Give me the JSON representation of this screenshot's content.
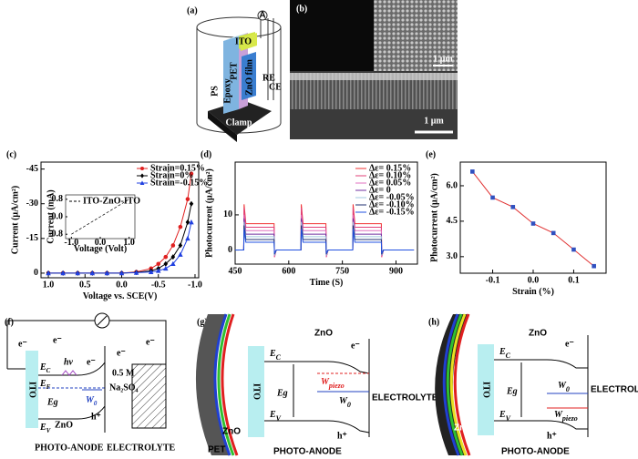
{
  "panel_a": {
    "label": "(a)",
    "ammeter": "A",
    "ito": "ITO",
    "pet": "PET",
    "zno_film": "ZnO film",
    "epoxy": "Epoxy",
    "ps": "PS",
    "re": "RE",
    "ce": "CE",
    "clamp": "Clamp"
  },
  "panel_b": {
    "label": "(b)",
    "scale_top": "1 μm",
    "scale_bottom": "1 μm"
  },
  "chart_data": [
    {
      "panel": "(c)",
      "type": "line",
      "x_label": "Voltage vs. SCE(V)",
      "y_label": "Current (μA/cm²)",
      "xlim": [
        1.1,
        -1.05
      ],
      "ylim": [
        2,
        -48
      ],
      "xticks": [
        {
          "value": 1,
          "label": "1.0"
        },
        0.5,
        {
          "value": 0,
          "label": "0.0"
        },
        -0.5,
        {
          "value": -1,
          "label": "-1.0"
        }
      ],
      "yticks": [
        0,
        -15,
        -30,
        -45
      ],
      "legend": "upper right",
      "x": [
        1.0,
        0.8,
        0.6,
        0.4,
        0.2,
        0.0,
        -0.2,
        -0.4,
        -0.5,
        -0.6,
        -0.7,
        -0.8,
        -0.9,
        -0.95
      ],
      "series": [
        {
          "name": "Strain=0.15%",
          "color": "#e02020",
          "marker": "circle",
          "values": [
            0,
            0,
            0,
            0,
            0,
            0,
            -0.5,
            -2,
            -4,
            -7,
            -12,
            -20,
            -32,
            -43
          ]
        },
        {
          "name": "Strain=0%",
          "color": "#000000",
          "marker": "diamond",
          "values": [
            0,
            0,
            0,
            0,
            0,
            0,
            -0.3,
            -1,
            -2,
            -4,
            -7,
            -12,
            -22,
            -30
          ]
        },
        {
          "name": "Strain=-0.15%",
          "color": "#2040e0",
          "marker": "triangle",
          "values": [
            0,
            0,
            0,
            0,
            0,
            0,
            -0.2,
            -0.5,
            -1,
            -2,
            -4,
            -8,
            -15,
            -22
          ]
        }
      ]
    },
    {
      "type": "line",
      "x_label": "Voltage (Volt)",
      "y_label": "Current (mA)",
      "xlim": [
        -1.2,
        1.2
      ],
      "ylim": [
        -1,
        1
      ],
      "xticks": [
        {
          "value": -1,
          "label": "-1.0"
        },
        {
          "value": 0,
          "label": "0.0"
        },
        {
          "value": 1,
          "label": "1.0"
        }
      ],
      "yticks": [
        -0.8,
        {
          "value": 0,
          "label": "0.0"
        },
        0.8
      ],
      "legend": "upper left",
      "x": [
        -1,
        1
      ],
      "series": [
        {
          "name": "ITO-ZnO-ITO",
          "color": "#000000",
          "dash": true,
          "values": [
            -0.8,
            0.8
          ]
        }
      ]
    },
    {
      "panel": "(d)",
      "type": "line",
      "x_label": "Time (S)",
      "y_label": "Photocurrent (μA/cm²)",
      "xlim": [
        450,
        960
      ],
      "ylim": [
        -4,
        25
      ],
      "xticks": [
        450,
        600,
        750,
        900
      ],
      "yticks": [
        0,
        10
      ],
      "legend": "upper right",
      "x": [
        450,
        474,
        475,
        480,
        559,
        560,
        565,
        634,
        635,
        640,
        704,
        705,
        710,
        779,
        780,
        785,
        859,
        860,
        865,
        950
      ],
      "series": [
        {
          "name": "Δε= 0.15%",
          "color": "#f03030",
          "values": [
            0,
            0,
            13,
            7.5,
            7.5,
            -2,
            0,
            0,
            13,
            7.5,
            7.5,
            -2,
            0,
            0,
            13,
            7.5,
            7.5,
            -2,
            0,
            0
          ]
        },
        {
          "name": "Δε= 0.10%",
          "color": "#e0407a",
          "values": [
            0,
            0,
            12,
            6.5,
            6.5,
            -2,
            0,
            0,
            12,
            6.5,
            6.5,
            -2,
            0,
            0,
            12,
            6.5,
            6.5,
            -2,
            0,
            0
          ]
        },
        {
          "name": "Δε= 0.05%",
          "color": "#e070c0",
          "values": [
            0,
            0,
            10,
            5.5,
            5.5,
            -1.8,
            0,
            0,
            10,
            5.5,
            5.5,
            -1.8,
            0,
            0,
            10,
            5.5,
            5.5,
            -1.8,
            0,
            0
          ]
        },
        {
          "name": "Δε= 0",
          "color": "#7030a0",
          "values": [
            0,
            0,
            9,
            4.5,
            4.5,
            -1.5,
            0,
            0,
            9,
            4.5,
            4.5,
            -1.5,
            0,
            0,
            9,
            4.5,
            4.5,
            -1.5,
            0,
            0
          ]
        },
        {
          "name": "Δε= -0.05%",
          "color": "#a0c8e0",
          "values": [
            0,
            0,
            8,
            3.8,
            3.8,
            -1.5,
            0,
            0,
            8,
            3.8,
            3.8,
            -1.5,
            0,
            0,
            8,
            3.8,
            3.8,
            -1.5,
            0,
            0
          ]
        },
        {
          "name": "Δε= -0.10%",
          "color": "#203070",
          "values": [
            0,
            0,
            7,
            3.0,
            3.0,
            -1.2,
            0,
            0,
            7,
            3.0,
            3.0,
            -1.2,
            0,
            0,
            7,
            3.0,
            3.0,
            -1.2,
            0,
            0
          ]
        },
        {
          "name": "Δε= -0.15%",
          "color": "#2050e0",
          "values": [
            0,
            0,
            6,
            2.2,
            2.2,
            -1,
            0,
            0,
            6,
            2.2,
            2.2,
            -1,
            0,
            0,
            6,
            2.2,
            2.2,
            -1,
            0,
            0
          ]
        }
      ]
    },
    {
      "panel": "(e)",
      "type": "line",
      "x_label": "Strain (%)",
      "y_label": "Photocurrent (μA/cm²)",
      "xlim": [
        -0.18,
        0.18
      ],
      "ylim": [
        2.3,
        7.0
      ],
      "xticks": [
        -0.1,
        {
          "value": 0,
          "label": "0.0"
        },
        0.1
      ],
      "yticks": [
        {
          "value": 3,
          "label": "3.0"
        },
        4.5,
        {
          "value": 6,
          "label": "6.0"
        }
      ],
      "x": [
        -0.15,
        -0.1,
        -0.05,
        0,
        0.05,
        0.1,
        0.15
      ],
      "series": [
        {
          "color": "#e03030",
          "marker": "square",
          "marker_color": "#3050c0",
          "values": [
            6.6,
            5.5,
            5.1,
            4.4,
            4.0,
            3.3,
            2.6
          ]
        }
      ]
    }
  ],
  "panel_f": {
    "label": "(f)",
    "electron": "e⁻",
    "hv": "hν",
    "ec": {
      "main": "E",
      "sub": "C"
    },
    "ef": {
      "main": "E",
      "sub": "F"
    },
    "ev": {
      "main": "E",
      "sub": "V"
    },
    "eg": "Eg",
    "w0": {
      "main": "W",
      "sub": "0"
    },
    "zno": "ZnO",
    "hole": "h⁺",
    "ito": "ITO",
    "conc": "0.5 M",
    "salt": "Na₂SO₄",
    "anode": "PHOTO-ANODE",
    "electrolyte": "ELECTROLYTE"
  },
  "panel_g": {
    "label": "(g)",
    "zno": "ZnO",
    "electron": "e⁻",
    "ec": {
      "main": "E",
      "sub": "C"
    },
    "ev": {
      "main": "E",
      "sub": "V"
    },
    "eg": "Eg",
    "wpiezo": {
      "main": "W",
      "sub": "piezo"
    },
    "w0": {
      "main": "W",
      "sub": "0"
    },
    "hole": "h⁺",
    "ito": "ITO",
    "electrolyte": "ELECTROLYTE",
    "anode": "PHOTO-ANODE",
    "zno_small": "ZnO",
    "pet": "PET"
  },
  "panel_h": {
    "label": "(h)",
    "zno": "ZnO",
    "electron": "e⁻",
    "ec": {
      "main": "E",
      "sub": "C"
    },
    "ev": {
      "main": "E",
      "sub": "V"
    },
    "eg": "Eg",
    "w0": {
      "main": "W",
      "sub": "0"
    },
    "wpiezo": {
      "main": "W",
      "sub": "piezo"
    },
    "hole": "h⁺",
    "ito": "ITO",
    "electrolyte": "ELECTROLYTE",
    "anode": "PHOTO-ANODE",
    "zno_small": "ZnO"
  }
}
